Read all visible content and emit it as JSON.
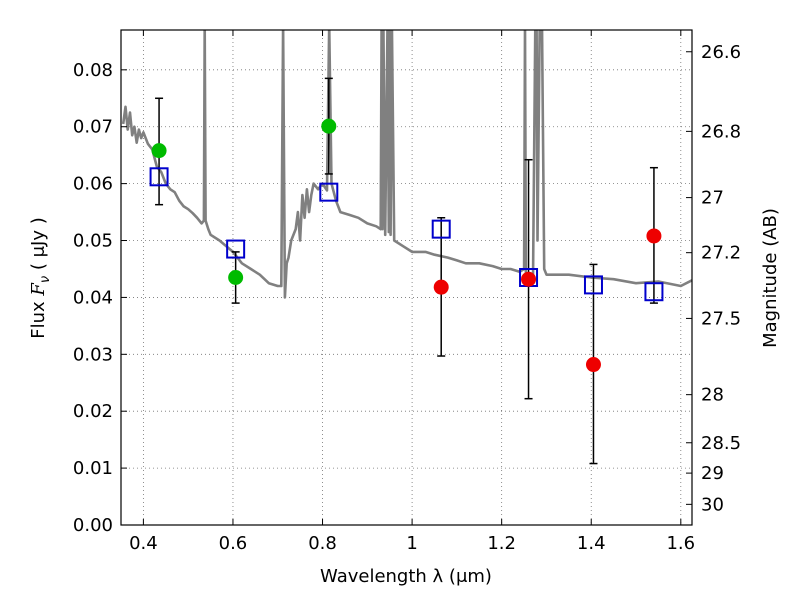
{
  "chart_data": {
    "type": "scatter",
    "xlabel": "Wavelength  λ (μm)",
    "ylabel": "Flux  F_ν  ( μJy )",
    "ylabel_parts": {
      "prefix": "Flux  ",
      "symbol": "F",
      "subscript": "ν",
      "suffix": "  ( μJy )"
    },
    "y2label": "Magnitude (AB)",
    "xlim": [
      0.35,
      1.625
    ],
    "ylim": [
      0.0,
      0.087
    ],
    "grid": true,
    "x_ticks": [
      {
        "value": 0.4,
        "label": "0.4"
      },
      {
        "value": 0.6,
        "label": "0.6"
      },
      {
        "value": 0.8,
        "label": "0.8"
      },
      {
        "value": 1.0,
        "label": "1"
      },
      {
        "value": 1.2,
        "label": "1.2"
      },
      {
        "value": 1.4,
        "label": "1.4"
      },
      {
        "value": 1.6,
        "label": "1.6"
      }
    ],
    "y_ticks": [
      {
        "value": 0.0,
        "label": "0.00"
      },
      {
        "value": 0.01,
        "label": "0.01"
      },
      {
        "value": 0.02,
        "label": "0.02"
      },
      {
        "value": 0.03,
        "label": "0.03"
      },
      {
        "value": 0.04,
        "label": "0.04"
      },
      {
        "value": 0.05,
        "label": "0.05"
      },
      {
        "value": 0.06,
        "label": "0.06"
      },
      {
        "value": 0.07,
        "label": "0.07"
      },
      {
        "value": 0.08,
        "label": "0.08"
      }
    ],
    "y2_ticks": [
      {
        "value": 26.6,
        "label": "26.6"
      },
      {
        "value": 26.8,
        "label": "26.8"
      },
      {
        "value": 27.0,
        "label": "27"
      },
      {
        "value": 27.2,
        "label": "27.2"
      },
      {
        "value": 27.5,
        "label": "27.5"
      },
      {
        "value": 28.0,
        "label": "28"
      },
      {
        "value": 28.5,
        "label": "28.5"
      },
      {
        "value": 29.0,
        "label": "29"
      },
      {
        "value": 30.0,
        "label": "30"
      }
    ],
    "y2_zero_flux_magnitude_ab": 23.9,
    "colors": {
      "model": "#808080",
      "green": "#00bb00",
      "red": "#ee0000",
      "square": "#0000cc",
      "errorbar": "#000000"
    },
    "observed_detections": [
      {
        "x": 0.435,
        "y": 0.0658,
        "yerr_low": 0.0563,
        "yerr_high": 0.075
      },
      {
        "x": 0.606,
        "y": 0.0435,
        "yerr_low": 0.039,
        "yerr_high": 0.048
      },
      {
        "x": 0.814,
        "y": 0.0701,
        "yerr_low": 0.0617,
        "yerr_high": 0.0785
      }
    ],
    "observed_marginal": [
      {
        "x": 1.065,
        "y": 0.0418,
        "yerr_low": 0.0297,
        "yerr_high": 0.054
      },
      {
        "x": 1.26,
        "y": 0.0432,
        "yerr_low": 0.0222,
        "yerr_high": 0.0642
      },
      {
        "x": 1.405,
        "y": 0.0282,
        "yerr_low": 0.0108,
        "yerr_high": 0.0458
      },
      {
        "x": 1.54,
        "y": 0.0508,
        "yerr_low": 0.039,
        "yerr_high": 0.0628
      }
    ],
    "model_photometry": [
      {
        "x": 0.435,
        "y": 0.0612
      },
      {
        "x": 0.606,
        "y": 0.0485
      },
      {
        "x": 0.814,
        "y": 0.0585
      },
      {
        "x": 1.065,
        "y": 0.052
      },
      {
        "x": 1.26,
        "y": 0.0435
      },
      {
        "x": 1.405,
        "y": 0.0422
      },
      {
        "x": 1.54,
        "y": 0.041
      }
    ],
    "model_spectrum": {
      "x": [
        0.355,
        0.36,
        0.365,
        0.37,
        0.375,
        0.38,
        0.385,
        0.39,
        0.395,
        0.4,
        0.41,
        0.42,
        0.43,
        0.44,
        0.45,
        0.46,
        0.47,
        0.48,
        0.49,
        0.5,
        0.51,
        0.52,
        0.53,
        0.535,
        0.537,
        0.539,
        0.545,
        0.55,
        0.57,
        0.6,
        0.62,
        0.64,
        0.66,
        0.68,
        0.7,
        0.708,
        0.712,
        0.716,
        0.72,
        0.724,
        0.73,
        0.74,
        0.745,
        0.75,
        0.755,
        0.76,
        0.765,
        0.77,
        0.775,
        0.78,
        0.79,
        0.8,
        0.81,
        0.815,
        0.82,
        0.83,
        0.84,
        0.86,
        0.88,
        0.9,
        0.92,
        0.93,
        0.932,
        0.934,
        0.936,
        0.94,
        0.945,
        0.948,
        0.95,
        0.952,
        0.955,
        0.96,
        0.98,
        1.0,
        1.03,
        1.05,
        1.08,
        1.1,
        1.12,
        1.15,
        1.18,
        1.2,
        1.22,
        1.24,
        1.25,
        1.252,
        1.254,
        1.26,
        1.265,
        1.27,
        1.275,
        1.278,
        1.28,
        1.285,
        1.29,
        1.295,
        1.3,
        1.35,
        1.4,
        1.45,
        1.5,
        1.55,
        1.6,
        1.625
      ],
      "y": [
        0.0705,
        0.0735,
        0.0695,
        0.0725,
        0.0685,
        0.07,
        0.0672,
        0.0695,
        0.068,
        0.069,
        0.067,
        0.066,
        0.063,
        0.062,
        0.06,
        0.059,
        0.0585,
        0.057,
        0.056,
        0.0555,
        0.0548,
        0.054,
        0.053,
        0.0535,
        0.088,
        0.0535,
        0.052,
        0.051,
        0.05,
        0.048,
        0.046,
        0.045,
        0.044,
        0.0425,
        0.042,
        0.042,
        0.088,
        0.04,
        0.046,
        0.047,
        0.05,
        0.052,
        0.055,
        0.05,
        0.058,
        0.054,
        0.059,
        0.055,
        0.058,
        0.06,
        0.059,
        0.06,
        0.0588,
        0.088,
        0.06,
        0.057,
        0.055,
        0.0545,
        0.054,
        0.053,
        0.0525,
        0.052,
        0.088,
        0.052,
        0.088,
        0.051,
        0.088,
        0.0515,
        0.088,
        0.051,
        0.088,
        0.05,
        0.049,
        0.048,
        0.048,
        0.0475,
        0.047,
        0.0465,
        0.046,
        0.046,
        0.0455,
        0.045,
        0.045,
        0.0445,
        0.045,
        0.088,
        0.043,
        0.044,
        0.044,
        0.043,
        0.088,
        0.088,
        0.05,
        0.088,
        0.088,
        0.045,
        0.044,
        0.044,
        0.0435,
        0.0432,
        0.0425,
        0.0428,
        0.042,
        0.043
      ]
    }
  }
}
